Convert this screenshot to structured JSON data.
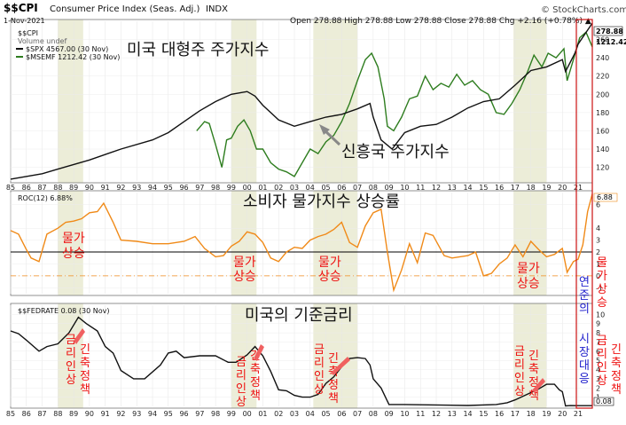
{
  "header": {
    "symbol": "$$CPI",
    "title_rest": "Consumer Price Index (Seas. Adj.)",
    "exchange": "INDX",
    "date": "1-Nov-2021",
    "ohlc": "Open 278.88  High 278.88  Low 278.88  Close 278.88  Chg +2.16 (+0.78%) ▲",
    "brand": "© StockCharts.com"
  },
  "legend": {
    "cpi": "$$CPI",
    "volume": "Volume undef",
    "spx": "$SPX 4567.00 (30 Nov)",
    "msemf": "$MSEMF 1212.42 (30 Nov)"
  },
  "panel2_label": "ROC(12) 6.88%",
  "panel3_label": "$$FEDRATE 0.08 (30 Nov)",
  "x_tick_labels": [
    "85",
    "86",
    "87",
    "88",
    "89",
    "90",
    "91",
    "92",
    "93",
    "94",
    "95",
    "96",
    "97",
    "98",
    "99",
    "00",
    "01",
    "02",
    "03",
    "04",
    "05",
    "06",
    "07",
    "08",
    "09",
    "10",
    "11",
    "12",
    "13",
    "14",
    "15",
    "16",
    "17",
    "18",
    "19",
    "20",
    "21"
  ],
  "top_price_ticks": [
    "260",
    "240",
    "220",
    "200",
    "180",
    "160",
    "140",
    "120"
  ],
  "top_last_labels": [
    "278.88",
    "1212.42"
  ],
  "roc_ticks": [
    "6",
    "4",
    "3",
    "2",
    "1",
    "0",
    "-1"
  ],
  "roc_last_label": "6.88",
  "fed_ticks": [
    "10",
    "9",
    "8",
    "7",
    "6",
    "5",
    "4",
    "3",
    "2",
    "1"
  ],
  "fed_last_label": "0.08",
  "annotations": {
    "title_top": "미국 대형주 주가지수",
    "em_label": "신흥국 주가지수",
    "title_mid": "소비자 물가지수 상승률",
    "title_bottom": "미국의 기준금리",
    "inflation": [
      {
        "l1": "물가",
        "l2": "상승"
      },
      {
        "l1": "물가",
        "l2": "상승"
      },
      {
        "l1": "물가",
        "l2": "상승"
      },
      {
        "l1": "물가",
        "l2": "상승"
      }
    ],
    "infl_right": "물가상승",
    "tight_left": "금리인상",
    "tight_right": "긴축정책",
    "fed_response": "연준의",
    "market_response": "시장대응"
  },
  "colors": {
    "spx": "#111111",
    "msemf": "#2e7d1f",
    "roc": "#f08a18",
    "fed": "#111111",
    "shade": "#ecedd8",
    "annotation_red": "#ee1111",
    "annotation_blue": "#2222cc",
    "box_red": "#cc1111"
  },
  "chart_data": [
    {
      "type": "line",
      "panel": "top",
      "xlabel": "",
      "ylabel": "",
      "x_range": [
        1985,
        2021.9
      ],
      "ylim": [
        105,
        280
      ],
      "series": [
        {
          "name": "$SPX",
          "x": [
            1985,
            1987,
            1988,
            1990,
            1992,
            1994,
            1995,
            1996,
            1997,
            1998,
            1999,
            2000,
            2000.5,
            2001,
            2002,
            2003,
            2004,
            2005,
            2006,
            2007,
            2007.8,
            2008,
            2008.5,
            2009.2,
            2010,
            2011,
            2012,
            2013,
            2014,
            2015,
            2016,
            2017,
            2018,
            2019,
            2020,
            2020.2,
            2020.8,
            2021,
            2021.9
          ],
          "y": [
            107,
            113,
            118,
            128,
            140,
            150,
            158,
            170,
            182,
            192,
            200,
            203,
            198,
            188,
            172,
            165,
            170,
            175,
            178,
            184,
            190,
            175,
            150,
            140,
            158,
            165,
            167,
            175,
            185,
            192,
            195,
            210,
            226,
            230,
            238,
            225,
            245,
            255,
            278
          ]
        },
        {
          "name": "$MSEMF",
          "x": [
            1996.8,
            1997.3,
            1997.6,
            1998.0,
            1998.4,
            1998.7,
            1999,
            1999.4,
            1999.8,
            2000.2,
            2000.6,
            2001,
            2001.5,
            2002,
            2002.5,
            2003,
            2003.5,
            2004,
            2004.5,
            2005,
            2005.5,
            2006,
            2006.5,
            2007,
            2007.5,
            2007.9,
            2008.3,
            2008.7,
            2008.9,
            2009.3,
            2009.8,
            2010.3,
            2010.8,
            2011.3,
            2011.8,
            2012.3,
            2012.8,
            2013.3,
            2013.8,
            2014.3,
            2014.8,
            2015.3,
            2015.8,
            2016.3,
            2016.8,
            2017.3,
            2017.8,
            2018.2,
            2018.7,
            2019.1,
            2019.6,
            2020.1,
            2020.3,
            2020.7,
            2021.1,
            2021.5,
            2021.9
          ],
          "y": [
            160,
            170,
            168,
            145,
            120,
            150,
            152,
            165,
            172,
            160,
            140,
            140,
            125,
            118,
            115,
            110,
            125,
            140,
            135,
            148,
            155,
            170,
            190,
            215,
            238,
            245,
            230,
            195,
            165,
            160,
            175,
            195,
            198,
            220,
            205,
            212,
            208,
            222,
            210,
            215,
            205,
            200,
            180,
            178,
            190,
            205,
            225,
            243,
            230,
            245,
            240,
            250,
            215,
            238,
            262,
            268,
            252
          ]
        }
      ]
    },
    {
      "type": "line",
      "panel": "middle",
      "title": "ROC(12)",
      "x_range": [
        1985,
        2021.9
      ],
      "ylim": [
        -1.5,
        7
      ],
      "series": [
        {
          "name": "ROC(12)",
          "x": [
            1985,
            1985.5,
            1986,
            1986.3,
            1986.8,
            1987.3,
            1988,
            1988.5,
            1989,
            1989.5,
            1990,
            1990.5,
            1990.9,
            1991.5,
            1992,
            1993,
            1994,
            1995,
            1996,
            1996.7,
            1997.3,
            1998,
            1998.5,
            1999,
            1999.5,
            2000,
            2000.5,
            2001,
            2001.5,
            2002,
            2002.5,
            2003,
            2003.5,
            2004,
            2004.5,
            2005,
            2005.5,
            2006,
            2006.5,
            2007,
            2007.5,
            2008,
            2008.5,
            2008.9,
            2009.3,
            2009.8,
            2010.3,
            2010.8,
            2011.3,
            2011.8,
            2012.5,
            2013,
            2014,
            2014.5,
            2015,
            2015.5,
            2016,
            2016.5,
            2017,
            2017.5,
            2018,
            2018.5,
            2019,
            2019.5,
            2020,
            2020.3,
            2020.7,
            2021,
            2021.3,
            2021.6,
            2021.9
          ],
          "y": [
            3.8,
            3.5,
            2.2,
            1.5,
            1.2,
            3.5,
            4.0,
            4.5,
            4.6,
            4.8,
            5.3,
            5.4,
            6.1,
            4.5,
            3.0,
            2.9,
            2.7,
            2.7,
            2.9,
            3.3,
            2.3,
            1.6,
            1.7,
            2.5,
            2.9,
            3.7,
            3.5,
            2.8,
            1.5,
            1.2,
            2.0,
            2.4,
            2.3,
            3.0,
            3.3,
            3.5,
            3.9,
            4.5,
            2.8,
            2.4,
            4.2,
            5.3,
            5.6,
            2.0,
            -1.2,
            0.5,
            2.7,
            1.1,
            3.6,
            3.4,
            1.7,
            1.5,
            1.7,
            2.0,
            0.0,
            0.2,
            1.0,
            1.5,
            2.6,
            1.6,
            2.9,
            2.2,
            1.6,
            1.8,
            2.3,
            0.3,
            1.2,
            1.4,
            2.6,
            5.4,
            6.88
          ]
        }
      ]
    },
    {
      "type": "line",
      "panel": "bottom",
      "title": "$$FEDRATE",
      "x_range": [
        1985,
        2021.9
      ],
      "ylim": [
        0,
        11
      ],
      "series": [
        {
          "name": "$$FEDRATE",
          "x": [
            1985,
            1985.5,
            1986,
            1986.8,
            1987.3,
            1988,
            1988.7,
            1989.3,
            1989.8,
            1990.5,
            1991,
            1991.5,
            1992,
            1992.8,
            1993.5,
            1994.5,
            1995,
            1995.5,
            1996,
            1997,
            1998,
            1998.8,
            1999.3,
            2000,
            2000.5,
            2001,
            2001.5,
            2002,
            2002.5,
            2003,
            2003.5,
            2004,
            2004.5,
            2005,
            2005.5,
            2006,
            2006.5,
            2007,
            2007.5,
            2007.8,
            2008,
            2008.5,
            2009,
            2010,
            2012,
            2014,
            2015.8,
            2016.5,
            2017,
            2017.5,
            2018,
            2018.5,
            2019,
            2019.5,
            2019.8,
            2020,
            2020.2,
            2020.5,
            2021,
            2021.9
          ],
          "y": [
            8.2,
            7.9,
            7.2,
            6.0,
            6.5,
            6.8,
            8.0,
            9.7,
            9.0,
            8.2,
            6.5,
            5.8,
            3.9,
            3.0,
            3.0,
            4.5,
            5.8,
            6.0,
            5.3,
            5.5,
            5.5,
            4.8,
            4.8,
            5.6,
            6.5,
            5.5,
            3.8,
            1.8,
            1.7,
            1.2,
            1.0,
            1.0,
            1.3,
            2.5,
            3.2,
            4.3,
            5.2,
            5.3,
            5.2,
            4.5,
            3.0,
            2.0,
            0.2,
            0.2,
            0.15,
            0.1,
            0.2,
            0.4,
            0.7,
            1.1,
            1.5,
            1.9,
            2.4,
            2.4,
            1.8,
            1.6,
            0.05,
            0.09,
            0.08,
            0.08
          ]
        }
      ]
    }
  ]
}
